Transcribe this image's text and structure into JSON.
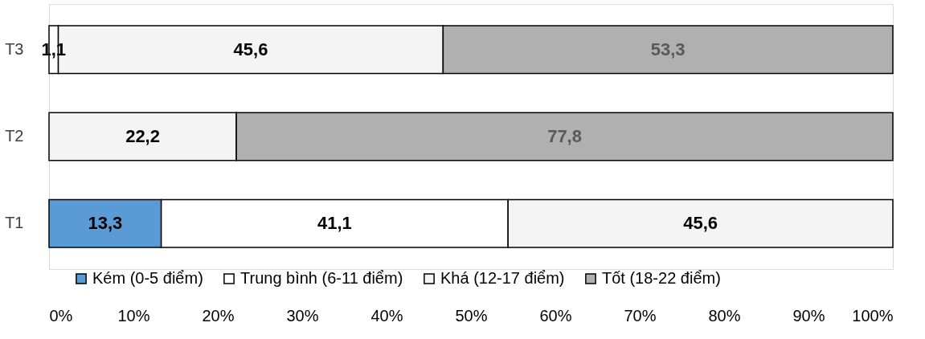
{
  "chart_data": {
    "type": "bar",
    "orientation": "horizontal",
    "stacked": true,
    "categories": [
      "T3",
      "T2",
      "T1"
    ],
    "series": [
      {
        "name": "Kém (0-5 điểm)",
        "color": "#5b9bd5",
        "values": [
          null,
          null,
          13.3
        ],
        "value_labels": [
          null,
          null,
          "13,3"
        ]
      },
      {
        "name": "Trung bình (6-11 điểm)",
        "color": "#ffffff",
        "values": [
          1.1,
          null,
          41.1
        ],
        "value_labels": [
          "1,1",
          null,
          "41,1"
        ]
      },
      {
        "name": "Khá (12-17 điểm)",
        "color": "#f4f4f4",
        "values": [
          45.6,
          22.2,
          45.6
        ],
        "value_labels": [
          "45,6",
          "22,2",
          "45,6"
        ]
      },
      {
        "name": "Tốt (18-22 điểm)",
        "color": "#b0b0b0",
        "values": [
          53.3,
          77.8,
          null
        ],
        "value_labels": [
          "53,3",
          "77,8",
          null
        ]
      }
    ],
    "xlim": [
      0,
      100
    ],
    "xticks": [
      {
        "value": 0,
        "label": "0%"
      },
      {
        "value": 10,
        "label": "10%"
      },
      {
        "value": 20,
        "label": "20%"
      },
      {
        "value": 30,
        "label": "30%"
      },
      {
        "value": 40,
        "label": "40%"
      },
      {
        "value": 50,
        "label": "50%"
      },
      {
        "value": 60,
        "label": "60%"
      },
      {
        "value": 70,
        "label": "70%"
      },
      {
        "value": 80,
        "label": "80%"
      },
      {
        "value": 90,
        "label": "90%"
      },
      {
        "value": 100,
        "label": "100%"
      }
    ],
    "grid": false,
    "legend": "bottom"
  }
}
